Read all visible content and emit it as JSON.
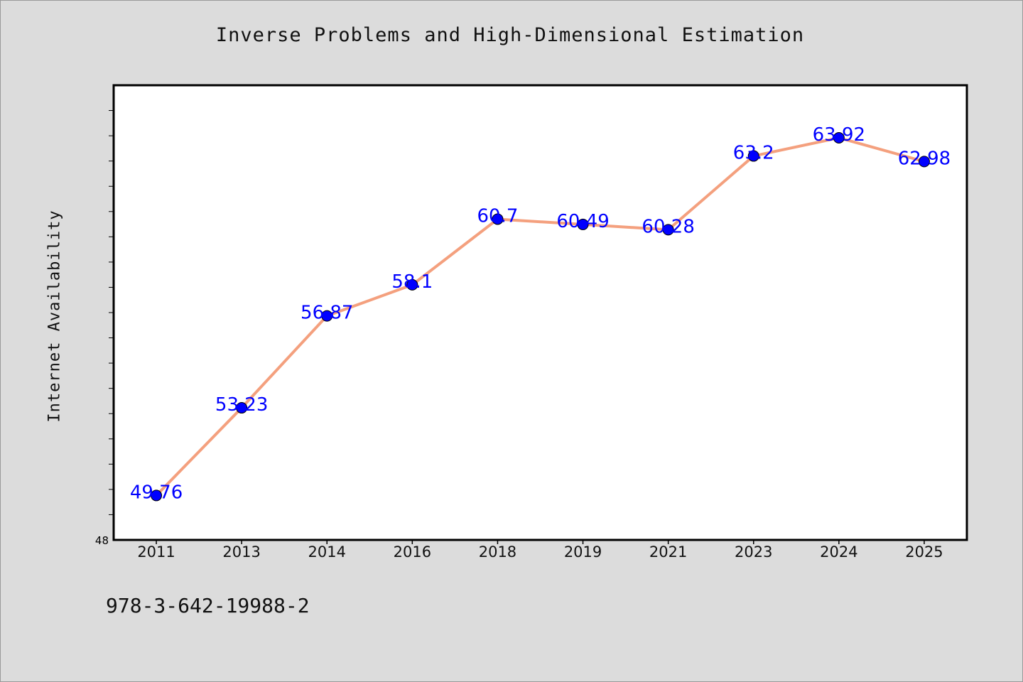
{
  "title": "Inverse Problems and High-Dimensional Estimation",
  "footer": "978-3-642-19988-2",
  "chart_data": {
    "type": "line",
    "title": "Inverse Problems and High-Dimensional Estimation",
    "xlabel": "",
    "ylabel": "Internet Availability",
    "categories": [
      "2011",
      "2013",
      "2014",
      "2016",
      "2018",
      "2019",
      "2021",
      "2023",
      "2024",
      "2025"
    ],
    "values": [
      49.76,
      53.23,
      56.87,
      58.1,
      60.7,
      60.49,
      60.28,
      63.2,
      63.92,
      62.98
    ],
    "data_labels": [
      "49.76",
      "53.23",
      "56.87",
      "58.1",
      "60.7",
      "60.49",
      "60.28",
      "63.2",
      "63.92",
      "62.98"
    ],
    "ylim": [
      48,
      66
    ],
    "y_tick_labels": [
      "48"
    ],
    "grid": false,
    "colors": {
      "line": "#f4a07e",
      "marker": "#0000ff",
      "data_label": "#0000ff",
      "plot_background": "#ffffff",
      "page_background": "#dcdcdc"
    }
  }
}
